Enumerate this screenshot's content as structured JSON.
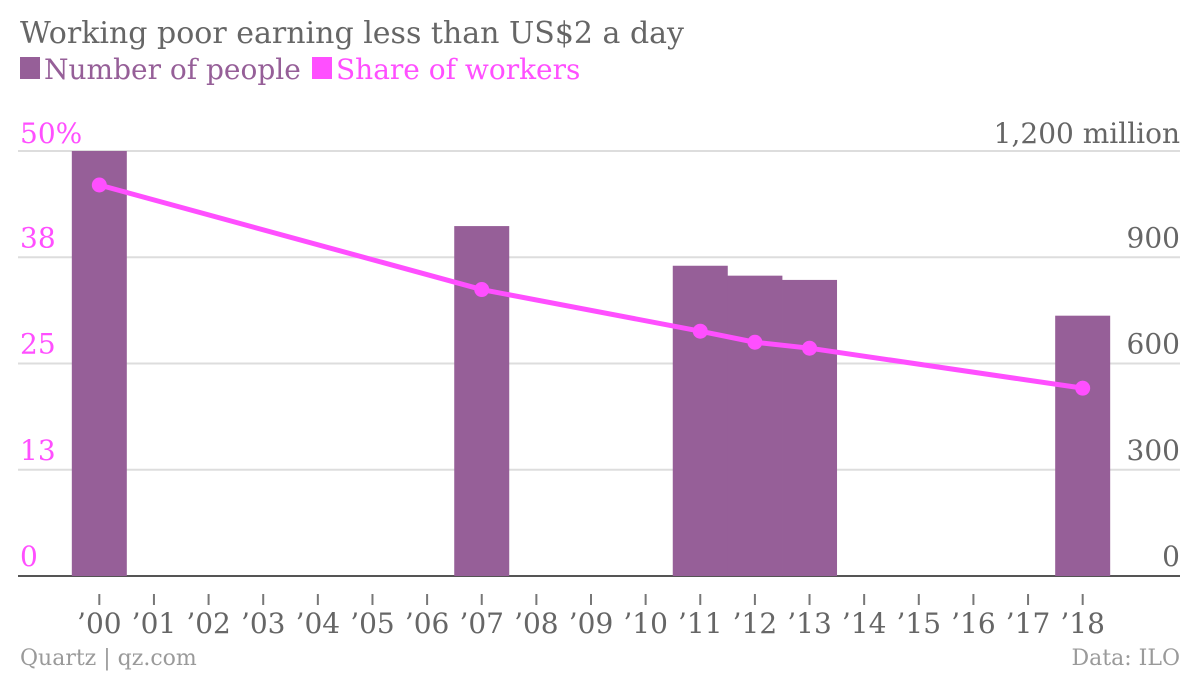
{
  "title": "Working poor earning less than US$2 a day",
  "colors": {
    "bar": "#965f98",
    "line": "#ff4fff",
    "grid": "#dddddd",
    "text": "#666666",
    "footer": "#9a9a9a"
  },
  "legend": {
    "bars_label": "Number of people",
    "line_label": "Share of workers"
  },
  "axes": {
    "left_ticks": [
      "0",
      "13",
      "25",
      "38",
      "50%"
    ],
    "right_ticks": [
      "0",
      "300",
      "600",
      "900",
      "1,200 million"
    ]
  },
  "chart_data": {
    "type": "bar",
    "title": "Working poor earning less than US$2 a day",
    "x": [
      "’00",
      "’01",
      "’02",
      "’03",
      "’04",
      "’05",
      "’06",
      "’07",
      "’08",
      "’09",
      "’10",
      "’11",
      "’12",
      "’13",
      "’14",
      "’15",
      "’16",
      "’17",
      "’18"
    ],
    "series": [
      {
        "name": "Number of people",
        "type": "bar",
        "axis": "right",
        "points": [
          {
            "x": "’00",
            "y": 1200
          },
          {
            "x": "’07",
            "y": 988
          },
          {
            "x": "’11",
            "y": 876
          },
          {
            "x": "’12",
            "y": 848
          },
          {
            "x": "’13",
            "y": 836
          },
          {
            "x": "’18",
            "y": 735
          }
        ]
      },
      {
        "name": "Share of workers",
        "type": "line",
        "axis": "left",
        "points": [
          {
            "x": "’00",
            "y": 46
          },
          {
            "x": "’07",
            "y": 33.7
          },
          {
            "x": "’11",
            "y": 28.8
          },
          {
            "x": "’12",
            "y": 27.5
          },
          {
            "x": "’13",
            "y": 26.8
          },
          {
            "x": "’18",
            "y": 22.1
          }
        ]
      }
    ],
    "left_axis_range": [
      0,
      50
    ],
    "right_axis_range": [
      0,
      1200
    ],
    "grid": true,
    "legend_position": "top-left"
  },
  "footer": {
    "source_left": "Quartz | qz.com",
    "source_right": "Data: ILO"
  }
}
